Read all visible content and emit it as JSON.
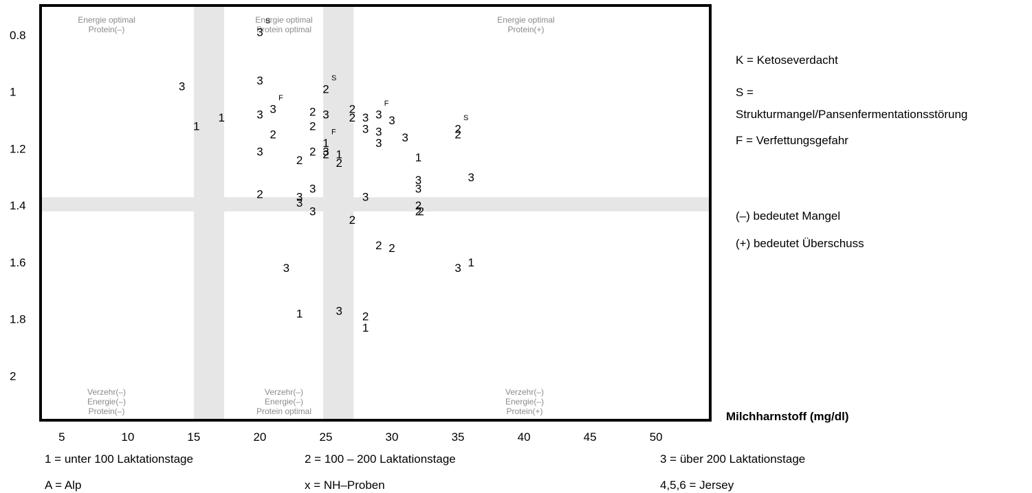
{
  "chart_data": {
    "type": "scatter",
    "title": "",
    "ylabel": "",
    "xlabel": "Milchharnstoff (mg/dl)",
    "xlim": [
      3.5,
      54
    ],
    "ylim": [
      0.7,
      2.15
    ],
    "y_reversed": true,
    "x_ticks": [
      "5",
      "10",
      "15",
      "20",
      "25",
      "30",
      "35",
      "40",
      "45",
      "50"
    ],
    "y_ticks": [
      "0.8",
      "1",
      "1.2",
      "1.4",
      "1.6",
      "1.8",
      "2"
    ],
    "optimal_bands": {
      "x": [
        [
          15,
          17.3
        ],
        [
          24.8,
          27.1
        ]
      ],
      "y": [
        [
          1.37,
          1.42
        ]
      ]
    },
    "zones": {
      "top_left": [
        "Energie optimal",
        "Protein(–)"
      ],
      "top_mid": [
        "Energie optimal",
        "Protein optimal"
      ],
      "top_right": [
        "Energie optimal",
        "Protein(+)"
      ],
      "bottom_left": [
        "Verzehr(–)",
        "Energie(–)",
        "Protein(–)"
      ],
      "bottom_mid": [
        "Verzehr(–)",
        "Energie(–)",
        "Protein optimal"
      ],
      "bottom_right": [
        "Verzehr(–)",
        "Energie(–)",
        "Protein(+)"
      ]
    },
    "points": [
      {
        "x": 20,
        "y": 0.79,
        "label": "3",
        "flag": "S"
      },
      {
        "x": 14.1,
        "y": 0.98,
        "label": "3",
        "flag": ""
      },
      {
        "x": 20,
        "y": 0.96,
        "label": "3",
        "flag": ""
      },
      {
        "x": 25,
        "y": 0.99,
        "label": "2",
        "flag": "S"
      },
      {
        "x": 15.2,
        "y": 1.12,
        "label": "1",
        "flag": ""
      },
      {
        "x": 17.1,
        "y": 1.09,
        "label": "1",
        "flag": ""
      },
      {
        "x": 20,
        "y": 1.08,
        "label": "3",
        "flag": ""
      },
      {
        "x": 21,
        "y": 1.06,
        "label": "3",
        "flag": "F"
      },
      {
        "x": 21,
        "y": 1.15,
        "label": "2",
        "flag": ""
      },
      {
        "x": 20,
        "y": 1.21,
        "label": "3",
        "flag": ""
      },
      {
        "x": 24,
        "y": 1.07,
        "label": "2",
        "flag": ""
      },
      {
        "x": 24,
        "y": 1.12,
        "label": "2",
        "flag": ""
      },
      {
        "x": 25,
        "y": 1.08,
        "label": "3",
        "flag": ""
      },
      {
        "x": 27,
        "y": 1.06,
        "label": "2",
        "flag": ""
      },
      {
        "x": 27,
        "y": 1.09,
        "label": "2",
        "flag": ""
      },
      {
        "x": 28,
        "y": 1.09,
        "label": "3",
        "flag": ""
      },
      {
        "x": 28,
        "y": 1.13,
        "label": "3",
        "flag": ""
      },
      {
        "x": 29,
        "y": 1.08,
        "label": "3",
        "flag": "F"
      },
      {
        "x": 29,
        "y": 1.14,
        "label": "3",
        "flag": ""
      },
      {
        "x": 29,
        "y": 1.18,
        "label": "3",
        "flag": ""
      },
      {
        "x": 30,
        "y": 1.1,
        "label": "3",
        "flag": ""
      },
      {
        "x": 31,
        "y": 1.16,
        "label": "3",
        "flag": ""
      },
      {
        "x": 35,
        "y": 1.13,
        "label": "2",
        "flag": "S"
      },
      {
        "x": 35,
        "y": 1.15,
        "label": "2",
        "flag": ""
      },
      {
        "x": 23,
        "y": 1.24,
        "label": "2",
        "flag": ""
      },
      {
        "x": 24,
        "y": 1.21,
        "label": "2",
        "flag": ""
      },
      {
        "x": 25,
        "y": 1.18,
        "label": "1",
        "flag": "F"
      },
      {
        "x": 25,
        "y": 1.21,
        "label": "3",
        "flag": ""
      },
      {
        "x": 25,
        "y": 1.22,
        "label": "2",
        "flag": ""
      },
      {
        "x": 26,
        "y": 1.22,
        "label": "1",
        "flag": ""
      },
      {
        "x": 26,
        "y": 1.25,
        "label": "2",
        "flag": ""
      },
      {
        "x": 32,
        "y": 1.23,
        "label": "1",
        "flag": ""
      },
      {
        "x": 32,
        "y": 1.31,
        "label": "3",
        "flag": ""
      },
      {
        "x": 32,
        "y": 1.34,
        "label": "3",
        "flag": ""
      },
      {
        "x": 36,
        "y": 1.3,
        "label": "3",
        "flag": ""
      },
      {
        "x": 20,
        "y": 1.36,
        "label": "2",
        "flag": ""
      },
      {
        "x": 23,
        "y": 1.37,
        "label": "3",
        "flag": ""
      },
      {
        "x": 23,
        "y": 1.39,
        "label": "3",
        "flag": ""
      },
      {
        "x": 24,
        "y": 1.34,
        "label": "3",
        "flag": ""
      },
      {
        "x": 24,
        "y": 1.42,
        "label": "3",
        "flag": ""
      },
      {
        "x": 28,
        "y": 1.37,
        "label": "3",
        "flag": ""
      },
      {
        "x": 27,
        "y": 1.45,
        "label": "2",
        "flag": ""
      },
      {
        "x": 32,
        "y": 1.4,
        "label": "2",
        "flag": ""
      },
      {
        "x": 32,
        "y": 1.42,
        "label": "2",
        "flag": ""
      },
      {
        "x": 32.2,
        "y": 1.42,
        "label": "2",
        "flag": ""
      },
      {
        "x": 29,
        "y": 1.54,
        "label": "2",
        "flag": ""
      },
      {
        "x": 30,
        "y": 1.55,
        "label": "2",
        "flag": ""
      },
      {
        "x": 22,
        "y": 1.62,
        "label": "3",
        "flag": ""
      },
      {
        "x": 35,
        "y": 1.62,
        "label": "3",
        "flag": ""
      },
      {
        "x": 36,
        "y": 1.6,
        "label": "1",
        "flag": ""
      },
      {
        "x": 23,
        "y": 1.78,
        "label": "1",
        "flag": ""
      },
      {
        "x": 26,
        "y": 1.77,
        "label": "3",
        "flag": ""
      },
      {
        "x": 28,
        "y": 1.79,
        "label": "2",
        "flag": ""
      },
      {
        "x": 28,
        "y": 1.83,
        "label": "1",
        "flag": ""
      }
    ],
    "legend_right": [
      "K = Ketoseverdacht",
      "S =",
      "Strukturmangel/Pansenfermentationsstörung",
      "F = Verfettungsgefahr",
      "(–) bedeutet Mangel",
      "(+) bedeutet Überschuss"
    ],
    "legend_bottom": [
      "1 = unter 100 Laktationstage",
      "2 = 100 – 200 Laktationstage",
      "3 = über 200 Laktationstage",
      "A = Alp",
      "x = NH–Proben",
      "4,5,6 = Jersey"
    ]
  }
}
